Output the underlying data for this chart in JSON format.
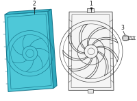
{
  "bg_color": "#ffffff",
  "shroud_fill": "#4ec8d8",
  "shroud_stroke": "#1a7a90",
  "outline_stroke": "#444444",
  "label_color": "#111111",
  "label_fontsize": 5.5,
  "label1": "1",
  "label2": "2",
  "label3": "3",
  "lw_shroud": 0.8,
  "lw_detail": 0.5,
  "lw_fan": 0.45
}
